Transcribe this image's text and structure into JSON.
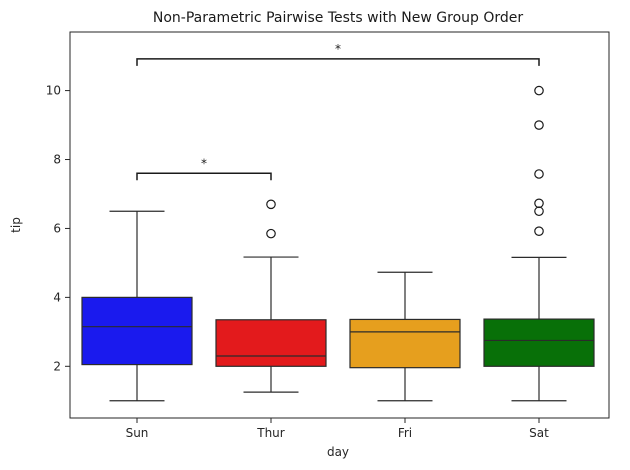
{
  "chart_data": {
    "type": "box",
    "title": "Non-Parametric Pairwise Tests with New Group Order",
    "xlabel": "day",
    "ylabel": "tip",
    "ylim": [
      0.5,
      11.7
    ],
    "yticks": [
      2,
      4,
      6,
      8,
      10
    ],
    "ytick_labels": [
      "2",
      "4",
      "6",
      "8",
      "10"
    ],
    "grid": false,
    "categories": [
      "Sun",
      "Thur",
      "Fri",
      "Sat"
    ],
    "boxes": [
      {
        "category": "Sun",
        "color": "#1a1aee",
        "whisker_low": 1.0,
        "q1": 2.05,
        "median": 3.15,
        "q3": 4.0,
        "whisker_high": 6.5,
        "outliers": []
      },
      {
        "category": "Thur",
        "color": "#e31a1c",
        "whisker_low": 1.25,
        "q1": 2.0,
        "median": 2.3,
        "q3": 3.35,
        "whisker_high": 5.17,
        "outliers": [
          5.85,
          6.7
        ]
      },
      {
        "category": "Fri",
        "color": "#e69f1e",
        "whisker_low": 1.0,
        "q1": 1.96,
        "median": 3.0,
        "q3": 3.36,
        "whisker_high": 4.73,
        "outliers": []
      },
      {
        "category": "Sat",
        "color": "#087008",
        "whisker_low": 1.0,
        "q1": 2.0,
        "median": 2.75,
        "q3": 3.37,
        "whisker_high": 5.16,
        "outliers": [
          5.92,
          6.5,
          6.73,
          7.58,
          9.0,
          10.0
        ]
      }
    ],
    "annotations": [
      {
        "from": "Sun",
        "to": "Thur",
        "y": 7.6,
        "label": "*"
      },
      {
        "from": "Sun",
        "to": "Sat",
        "y": 10.92,
        "label": "*"
      }
    ]
  }
}
